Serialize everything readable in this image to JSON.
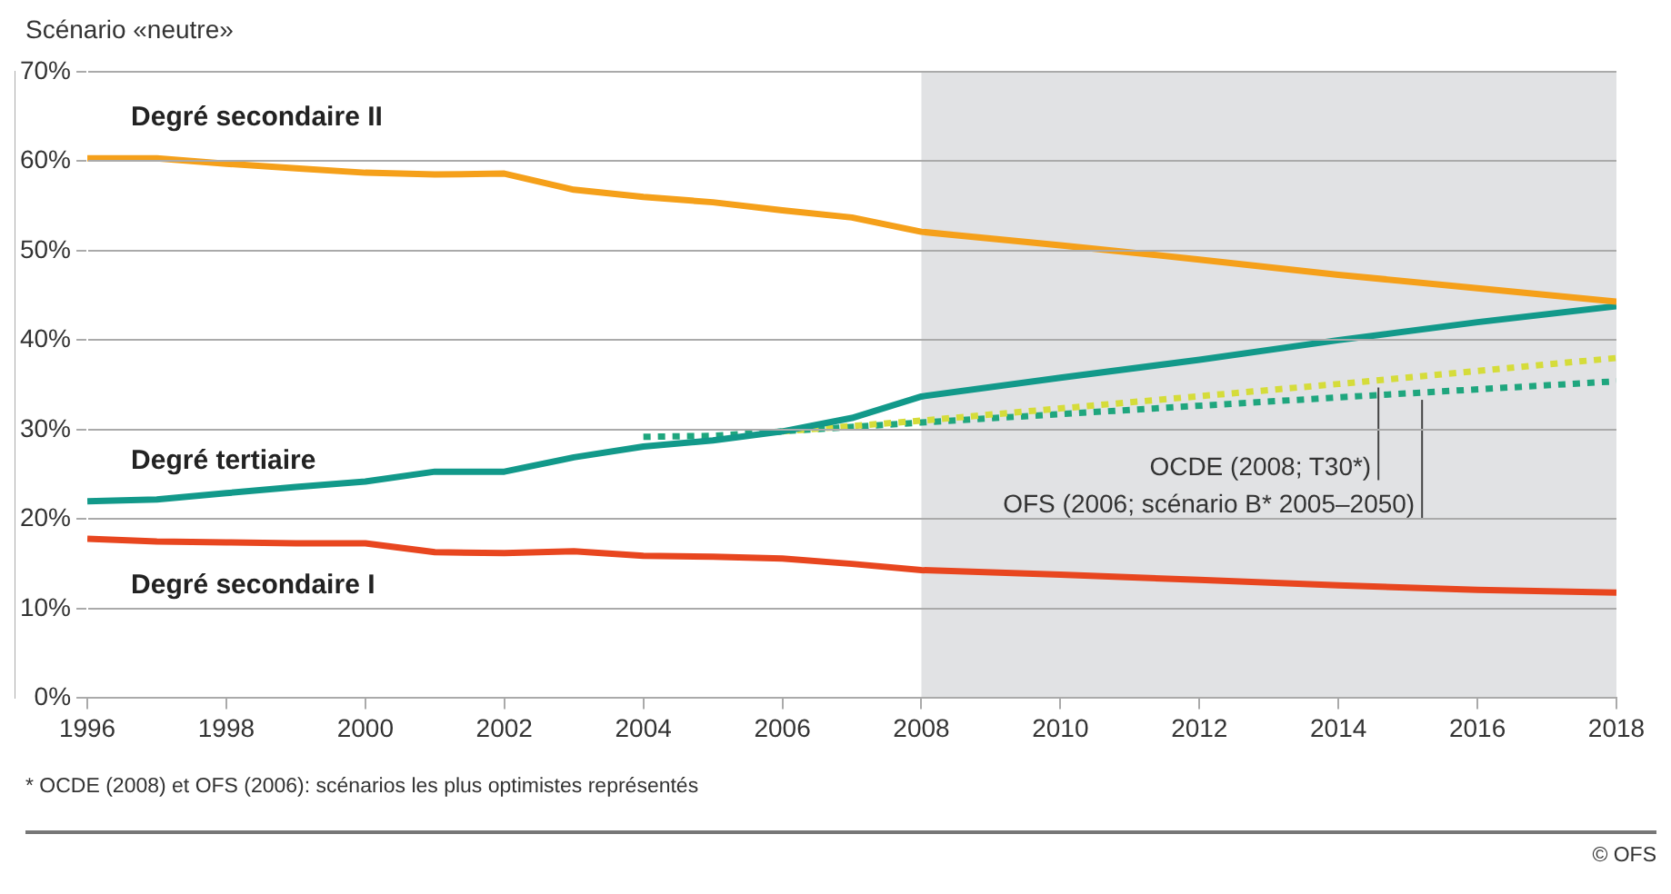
{
  "chart_data": {
    "type": "line",
    "title": "Scénario «neutre»",
    "ylim": [
      0,
      70
    ],
    "yticks": [
      {
        "value": 0,
        "label": "0%"
      },
      {
        "value": 10,
        "label": "10%"
      },
      {
        "value": 20,
        "label": "20%"
      },
      {
        "value": 30,
        "label": "30%"
      },
      {
        "value": 40,
        "label": "40%"
      },
      {
        "value": 50,
        "label": "50%"
      },
      {
        "value": 60,
        "label": "60%"
      },
      {
        "value": 70,
        "label": "70%"
      }
    ],
    "xlim": [
      1996,
      2018
    ],
    "xticks": [
      1996,
      1998,
      2000,
      2002,
      2004,
      2006,
      2008,
      2010,
      2012,
      2014,
      2016,
      2018
    ],
    "grid": "y",
    "legend": false,
    "marker": "none",
    "bands": [
      {
        "axis": "x",
        "from": 2008,
        "to": 2018,
        "color": "#e1e2e4"
      }
    ],
    "series": [
      {
        "name": "Degré secondaire II",
        "color": "#f5a01a",
        "line_style": "solid",
        "x": [
          1996,
          1997,
          1998,
          1999,
          2000,
          2001,
          2002,
          2003,
          2004,
          2005,
          2006,
          2007,
          2008,
          2010,
          2012,
          2014,
          2016,
          2018
        ],
        "values": [
          60.3,
          60.3,
          59.7,
          59.2,
          58.7,
          58.5,
          58.6,
          56.8,
          56.0,
          55.4,
          54.5,
          53.7,
          52.1,
          50.6,
          49.0,
          47.3,
          45.8,
          44.3
        ]
      },
      {
        "name": "Degré tertiaire",
        "color": "#12998a",
        "line_style": "solid",
        "x": [
          1996,
          1997,
          1998,
          1999,
          2000,
          2001,
          2002,
          2003,
          2004,
          2005,
          2006,
          2007,
          2008,
          2010,
          2012,
          2014,
          2016,
          2018
        ],
        "values": [
          22.0,
          22.2,
          22.9,
          23.6,
          24.2,
          25.3,
          25.3,
          26.9,
          28.1,
          28.8,
          29.8,
          31.3,
          33.7,
          35.8,
          37.8,
          40.0,
          42.0,
          43.8
        ]
      },
      {
        "name": "Degré secondaire I",
        "color": "#e8461f",
        "line_style": "solid",
        "x": [
          1996,
          1997,
          1998,
          1999,
          2000,
          2001,
          2002,
          2003,
          2004,
          2005,
          2006,
          2007,
          2008,
          2010,
          2012,
          2014,
          2016,
          2018
        ],
        "values": [
          17.8,
          17.5,
          17.4,
          17.3,
          17.3,
          16.3,
          16.2,
          16.4,
          15.9,
          15.8,
          15.6,
          15.0,
          14.3,
          13.8,
          13.2,
          12.6,
          12.1,
          11.8
        ]
      },
      {
        "name": "OCDE (2008; T30*)",
        "color": "#d5dc3a",
        "line_style": "dotted",
        "x": [
          2006,
          2008,
          2014,
          2018
        ],
        "values": [
          29.8,
          31.0,
          35.1,
          38.0
        ]
      },
      {
        "name": "OFS (2006; scénario B* 2005–2050)",
        "color": "#1fa67e",
        "line_style": "dotted",
        "x": [
          2004,
          2005,
          2006,
          2008,
          2014,
          2018
        ],
        "values": [
          29.2,
          29.3,
          29.8,
          30.8,
          33.6,
          35.4
        ]
      }
    ],
    "annotations": [
      "*  OCDE (2008) et OFS (2006): scénarios les plus optimistes représentés",
      "© OFS"
    ]
  }
}
